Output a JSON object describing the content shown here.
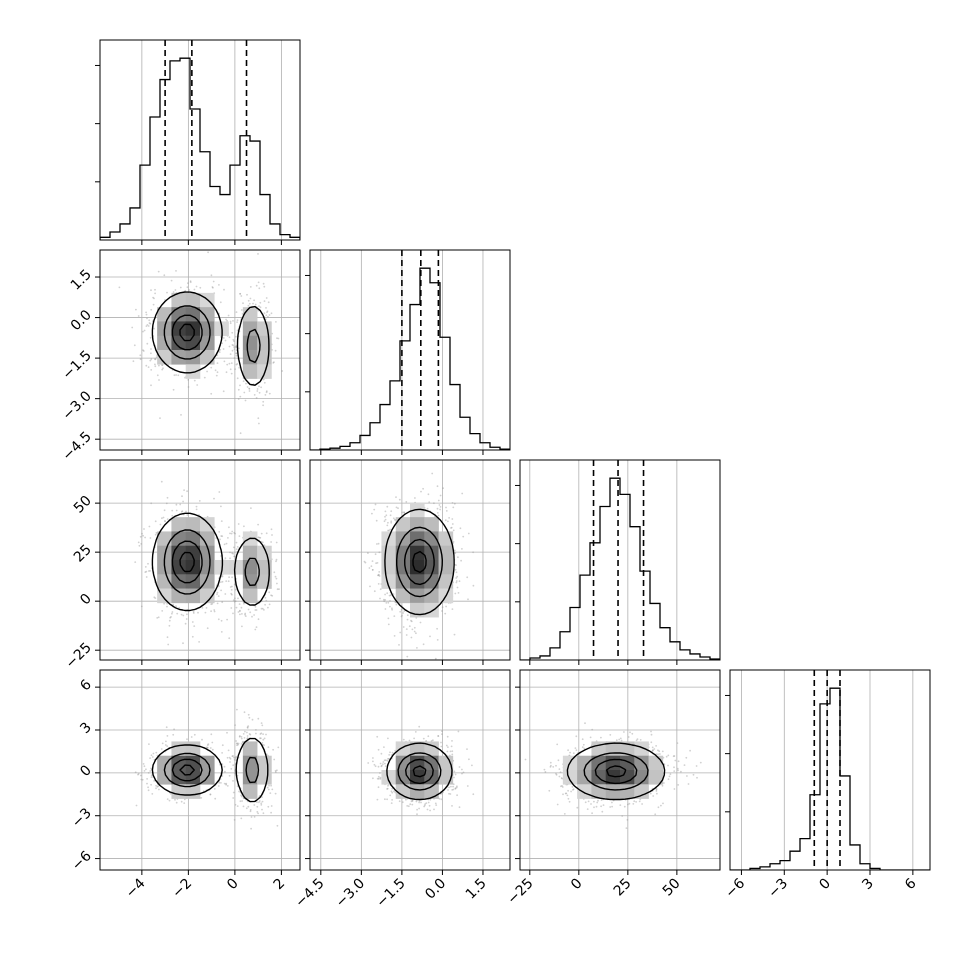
{
  "chart_data": {
    "type": "corner",
    "grid": true,
    "n_params": 4,
    "ranges": [
      [
        -5.8,
        2.8
      ],
      [
        -4.9,
        2.5
      ],
      [
        -30,
        72
      ],
      [
        -6.8,
        7.2
      ]
    ],
    "ticks": [
      [
        {
          "v": -4,
          "label": "−4"
        },
        {
          "v": -2,
          "label": "−2"
        },
        {
          "v": 0,
          "label": "0"
        },
        {
          "v": 2,
          "label": "2"
        }
      ],
      [
        {
          "v": -4.5,
          "label": "−4.5"
        },
        {
          "v": -3.0,
          "label": "−3.0"
        },
        {
          "v": -1.5,
          "label": "−1.5"
        },
        {
          "v": 0.0,
          "label": "0.0"
        },
        {
          "v": 1.5,
          "label": "1.5"
        }
      ],
      [
        {
          "v": -25,
          "label": "−25"
        },
        {
          "v": 0,
          "label": "0"
        },
        {
          "v": 25,
          "label": "25"
        },
        {
          "v": 50,
          "label": "50"
        }
      ],
      [
        {
          "v": -6,
          "label": "−6"
        },
        {
          "v": -3,
          "label": "−3"
        },
        {
          "v": 0,
          "label": "0"
        },
        {
          "v": 3,
          "label": "3"
        },
        {
          "v": 6,
          "label": "6"
        }
      ]
    ],
    "quantiles": [
      [
        -3.0,
        -1.85,
        0.5
      ],
      [
        -1.5,
        -0.8,
        -0.15
      ],
      [
        7.5,
        20,
        33
      ],
      [
        -0.9,
        0.0,
        0.9
      ]
    ],
    "histograms": [
      {
        "bin_edges": [
          -5.8,
          -5.37,
          -4.94,
          -4.51,
          -4.08,
          -3.65,
          -3.22,
          -2.79,
          -2.36,
          -1.93,
          -1.5,
          -1.07,
          -0.64,
          -0.21,
          0.22,
          0.65,
          1.08,
          1.51,
          1.94,
          2.37,
          2.8
        ],
        "counts": [
          1,
          3,
          6,
          12,
          28,
          46,
          60,
          67,
          68,
          49,
          33,
          20,
          17,
          28,
          39,
          37,
          17,
          6,
          2,
          1
        ]
      },
      {
        "bin_edges": [
          -4.9,
          -4.53,
          -4.16,
          -3.79,
          -3.42,
          -3.05,
          -2.68,
          -2.31,
          -1.94,
          -1.57,
          -1.2,
          -0.83,
          -0.46,
          -0.09,
          0.28,
          0.65,
          1.02,
          1.39,
          1.76,
          2.13,
          2.5
        ],
        "counts": [
          0,
          0.5,
          1,
          2,
          4,
          8,
          15,
          25,
          38,
          60,
          80,
          100,
          92,
          62,
          36,
          18,
          9,
          4,
          1.5,
          0.5
        ]
      },
      {
        "bin_edges": [
          -30,
          -24.9,
          -19.8,
          -14.7,
          -9.6,
          -4.5,
          0.6,
          5.7,
          10.8,
          15.9,
          21,
          26.1,
          31.2,
          36.3,
          41.4,
          46.5,
          51.6,
          56.7,
          61.8,
          66.9,
          72
        ],
        "counts": [
          0,
          1,
          2,
          6,
          14,
          26,
          42,
          58,
          76,
          90,
          82,
          66,
          44,
          28,
          16,
          9,
          5,
          3,
          1.5,
          0.5
        ]
      },
      {
        "bin_edges": [
          -6.8,
          -6.1,
          -5.4,
          -4.7,
          -4.0,
          -3.3,
          -2.6,
          -1.9,
          -1.2,
          -0.5,
          0.2,
          0.9,
          1.6,
          2.3,
          3.0,
          3.7,
          4.4,
          5.1,
          5.8,
          6.5,
          7.2
        ],
        "counts": [
          0,
          0,
          0.5,
          1,
          2,
          3,
          6,
          10,
          24,
          53,
          58,
          30,
          8,
          2,
          0.5,
          0,
          0,
          0,
          0,
          0
        ]
      }
    ],
    "pairs": [
      {
        "x": 0,
        "y": 1,
        "modes": [
          {
            "cx": -2.05,
            "cy": -0.55,
            "sx": 0.72,
            "sy": 0.72,
            "w": 0.66
          },
          {
            "cx": 0.8,
            "cy": -1.05,
            "sx": 0.38,
            "sy": 0.85,
            "w": 0.34
          }
        ]
      },
      {
        "x": 0,
        "y": 2,
        "modes": [
          {
            "cx": -2.05,
            "cy": 20,
            "sx": 0.72,
            "sy": 12,
            "w": 0.66
          },
          {
            "cx": 0.75,
            "cy": 15,
            "sx": 0.42,
            "sy": 10,
            "w": 0.34
          }
        ]
      },
      {
        "x": 1,
        "y": 2,
        "modes": [
          {
            "cx": -0.85,
            "cy": 20,
            "sx": 0.62,
            "sy": 13,
            "w": 1
          }
        ]
      },
      {
        "x": 0,
        "y": 3,
        "modes": [
          {
            "cx": -2.05,
            "cy": 0.2,
            "sx": 0.72,
            "sy": 0.85,
            "w": 0.66
          },
          {
            "cx": 0.75,
            "cy": 0.2,
            "sx": 0.38,
            "sy": 1.3,
            "w": 0.34
          }
        ]
      },
      {
        "x": 1,
        "y": 3,
        "modes": [
          {
            "cx": -0.85,
            "cy": 0.1,
            "sx": 0.58,
            "sy": 0.95,
            "w": 1
          }
        ]
      },
      {
        "x": 2,
        "y": 3,
        "modes": [
          {
            "cx": 19,
            "cy": 0.1,
            "sx": 12,
            "sy": 0.95,
            "w": 1
          }
        ]
      }
    ],
    "contour_levels": [
      0.12,
      0.4,
      0.68,
      0.92
    ],
    "colors": {
      "line": "#000000",
      "grid": "#b0b0b0",
      "scatter": "#9a9a9a",
      "density_max": "#2b2b2b"
    }
  }
}
